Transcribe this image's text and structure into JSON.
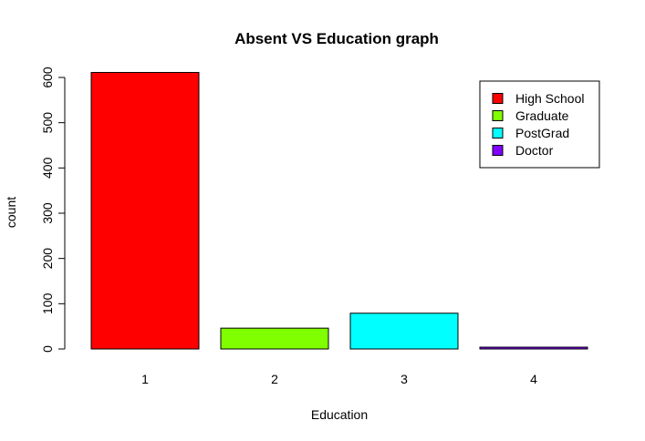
{
  "chart_data": {
    "type": "bar",
    "title": "Absent VS Education graph",
    "xlabel": "Education",
    "ylabel": "count",
    "categories": [
      "1",
      "2",
      "3",
      "4"
    ],
    "values": [
      611,
      46,
      79,
      4
    ],
    "colors": [
      "#FF0000",
      "#80FF00",
      "#00FFFF",
      "#8000FF"
    ],
    "ylim": [
      0,
      600
    ],
    "yticks": [
      "0",
      "100",
      "200",
      "300",
      "400",
      "500",
      "600"
    ],
    "legend": {
      "position": "top-right",
      "entries": [
        "High School",
        "Graduate",
        "PostGrad",
        "Doctor"
      ]
    },
    "grid": false
  }
}
